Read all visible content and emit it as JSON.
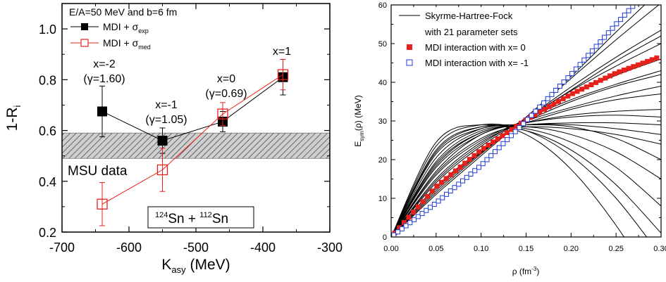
{
  "chart_data": [
    {
      "type": "line",
      "title": "",
      "xlabel": "K",
      "xlabel_sub": "asy",
      "xlabel_unit": " (MeV)",
      "ylabel": "1-R",
      "ylabel_sub": "i",
      "xlim": [
        -700,
        -300
      ],
      "ylim": [
        0.2,
        1.1
      ],
      "xticks": [
        -700,
        -600,
        -500,
        -400,
        -300
      ],
      "yticks": [
        0.2,
        0.4,
        0.6,
        0.8,
        1.0
      ],
      "ytick_labels": [
        "0.2",
        "0.4",
        "0.6",
        "0.8",
        "1.0"
      ],
      "grid": false,
      "legend_position": "top-left",
      "header": "E/A=50 MeV and b=6 fm",
      "series": [
        {
          "name": "MDI + σ",
          "name_sub": "exp",
          "color": "#000000",
          "marker": "filled-square",
          "x": [
            -640,
            -550,
            -460,
            -370
          ],
          "y": [
            0.675,
            0.56,
            0.635,
            0.81
          ],
          "err": [
            0.1,
            0.05,
            0.04,
            0.07
          ]
        },
        {
          "name": "MDI + σ",
          "name_sub": "med",
          "color": "#e8201c",
          "marker": "open-square",
          "x": [
            -640,
            -550,
            -460,
            -370
          ],
          "y": [
            0.31,
            0.445,
            0.665,
            0.82
          ],
          "err": [
            0.085,
            0.085,
            0.045,
            0.06
          ]
        }
      ],
      "band": {
        "label": "MSU data",
        "label_color": "#1a8f1a",
        "ymin": 0.49,
        "ymax": 0.59
      },
      "point_labels": [
        {
          "line1": "x=-2",
          "line2": "(γ=1.60)"
        },
        {
          "line1": "x=-1",
          "line2": "(γ=1.05)"
        },
        {
          "line1": "x=0",
          "line2": "(γ=0.69)"
        },
        {
          "line1": "x=1",
          "line2": ""
        }
      ],
      "reaction": {
        "a1": "124",
        "e1": "Sn + ",
        "a2": "112",
        "e2": "Sn"
      }
    },
    {
      "type": "line",
      "title": "",
      "xlabel": "ρ (fm",
      "xlabel_sup": "-3",
      "xlabel_end": ")",
      "ylabel": "E",
      "ylabel_sub": "sym",
      "ylabel_rest": "(ρ) (MeV)",
      "xlim": [
        0,
        0.3
      ],
      "ylim": [
        0,
        60
      ],
      "xticks": [
        0.0,
        0.05,
        0.1,
        0.15,
        0.2,
        0.25,
        0.3
      ],
      "xtick_labels": [
        "0.00",
        "0.05",
        "0.10",
        "0.15",
        "0.20",
        "0.25",
        "0.30"
      ],
      "yticks": [
        0,
        10,
        20,
        30,
        40,
        50,
        60
      ],
      "grid": false,
      "legend_position": "top-left",
      "legend": [
        {
          "label": "Skyrme-Hartree-Fock",
          "color": "#000000",
          "kind": "line"
        },
        {
          "label": "with 21 parameter sets",
          "color": "#000000",
          "kind": "text"
        },
        {
          "label": "MDI interaction with x= 0",
          "color": "#e8201c",
          "kind": "filled-square"
        },
        {
          "label": "MDI interaction with x= -1",
          "color": "#1f3bd6",
          "kind": "open-square"
        }
      ],
      "mdi_x0": {
        "name": "MDI interaction with x= 0",
        "color": "#e8201c",
        "x": [
          0,
          0.05,
          0.1,
          0.15,
          0.2,
          0.25,
          0.3
        ],
        "y": [
          0,
          13.0,
          22.5,
          30.3,
          36.9,
          42.4,
          46.7
        ]
      },
      "mdi_xm1": {
        "name": "MDI interaction with x= -1",
        "color": "#1f3bd6",
        "x": [
          0,
          0.05,
          0.1,
          0.15,
          0.2,
          0.25,
          0.27
        ],
        "y": [
          0,
          8.8,
          18.5,
          30.0,
          42.0,
          55.0,
          60.0
        ]
      },
      "shf_curves": [
        {
          "x": [
            0,
            0.05,
            0.1,
            0.15,
            0.2,
            0.25,
            0.3
          ],
          "y": [
            0,
            11.5,
            21.5,
            31.0,
            41.5,
            53.0,
            64.0
          ]
        },
        {
          "x": [
            0,
            0.05,
            0.1,
            0.15,
            0.2,
            0.25,
            0.3
          ],
          "y": [
            0,
            11.0,
            21.0,
            31.0,
            41.0,
            51.0,
            60.5
          ]
        },
        {
          "x": [
            0,
            0.05,
            0.1,
            0.15,
            0.2,
            0.25,
            0.3
          ],
          "y": [
            0,
            12.0,
            21.8,
            30.5,
            38.8,
            46.5,
            53.5
          ]
        },
        {
          "x": [
            0,
            0.05,
            0.1,
            0.15,
            0.2,
            0.25,
            0.3
          ],
          "y": [
            0,
            13.0,
            22.5,
            30.5,
            37.8,
            44.2,
            50.0
          ]
        },
        {
          "x": [
            0,
            0.05,
            0.1,
            0.15,
            0.2,
            0.25,
            0.3
          ],
          "y": [
            0,
            14.0,
            23.5,
            30.5,
            36.8,
            41.8,
            46.0
          ]
        },
        {
          "x": [
            0,
            0.05,
            0.1,
            0.15,
            0.2,
            0.25,
            0.3
          ],
          "y": [
            0,
            15.0,
            24.5,
            30.0,
            35.0,
            39.0,
            42.0
          ]
        },
        {
          "x": [
            0,
            0.05,
            0.1,
            0.15,
            0.2,
            0.25,
            0.3
          ],
          "y": [
            0,
            16.5,
            25.5,
            29.5,
            33.0,
            35.5,
            37.0
          ]
        },
        {
          "x": [
            0,
            0.05,
            0.1,
            0.15,
            0.2,
            0.25,
            0.3
          ],
          "y": [
            0,
            17.0,
            26.5,
            29.5,
            31.5,
            32.5,
            33.0
          ]
        },
        {
          "x": [
            0,
            0.05,
            0.1,
            0.15,
            0.2,
            0.25,
            0.3
          ],
          "y": [
            0,
            18.5,
            27.0,
            29.0,
            29.5,
            29.5,
            29.0
          ]
        },
        {
          "x": [
            0,
            0.05,
            0.1,
            0.15,
            0.2,
            0.25,
            0.3
          ],
          "y": [
            0,
            19.5,
            27.5,
            28.5,
            28.0,
            26.5,
            24.0
          ]
        },
        {
          "x": [
            0,
            0.05,
            0.1,
            0.15,
            0.2,
            0.25,
            0.3
          ],
          "y": [
            0,
            20.5,
            28.0,
            29.0,
            28.5,
            25.5,
            20.0
          ]
        },
        {
          "x": [
            0,
            0.05,
            0.1,
            0.15,
            0.2,
            0.25,
            0.3
          ],
          "y": [
            0,
            22.0,
            28.5,
            28.0,
            24.5,
            18.0,
            8.0
          ]
        },
        {
          "x": [
            0,
            0.05,
            0.1,
            0.15,
            0.2,
            0.25,
            0.3
          ],
          "y": [
            0,
            23.5,
            29.0,
            27.5,
            21.0,
            10.0,
            -5.0
          ]
        },
        {
          "x": [
            0,
            0.05,
            0.1,
            0.15,
            0.2,
            0.25,
            0.3
          ],
          "y": [
            0,
            24.5,
            29.0,
            26.5,
            17.5,
            3.0,
            -15.0
          ]
        },
        {
          "x": [
            0,
            0.05,
            0.1,
            0.15,
            0.2,
            0.25,
            0.3
          ],
          "y": [
            0,
            21.5,
            28.0,
            28.5,
            26.5,
            22.0,
            15.0
          ]
        },
        {
          "x": [
            0,
            0.05,
            0.1,
            0.15,
            0.2,
            0.25,
            0.3
          ],
          "y": [
            0,
            18.0,
            26.5,
            29.5,
            31.0,
            31.5,
            31.0
          ]
        },
        {
          "x": [
            0,
            0.05,
            0.1,
            0.15,
            0.2,
            0.25,
            0.3
          ],
          "y": [
            0,
            16.0,
            25.0,
            30.0,
            33.5,
            36.5,
            39.0
          ]
        },
        {
          "x": [
            0,
            0.05,
            0.1,
            0.15,
            0.2,
            0.25,
            0.3
          ],
          "y": [
            0,
            14.5,
            24.0,
            30.5,
            35.5,
            39.5,
            43.0
          ]
        },
        {
          "x": [
            0,
            0.05,
            0.1,
            0.15,
            0.2,
            0.25,
            0.3
          ],
          "y": [
            0,
            12.5,
            22.0,
            30.5,
            38.0,
            45.5,
            52.0
          ]
        },
        {
          "x": [
            0,
            0.05,
            0.1,
            0.15,
            0.2,
            0.25,
            0.3
          ],
          "y": [
            0,
            22.5,
            28.5,
            27.5,
            22.5,
            13.5,
            1.0
          ]
        },
        {
          "x": [
            0,
            0.05,
            0.1,
            0.15,
            0.2,
            0.25,
            0.3
          ],
          "y": [
            0,
            19.0,
            27.0,
            29.0,
            29.0,
            28.0,
            26.5
          ]
        }
      ]
    }
  ]
}
